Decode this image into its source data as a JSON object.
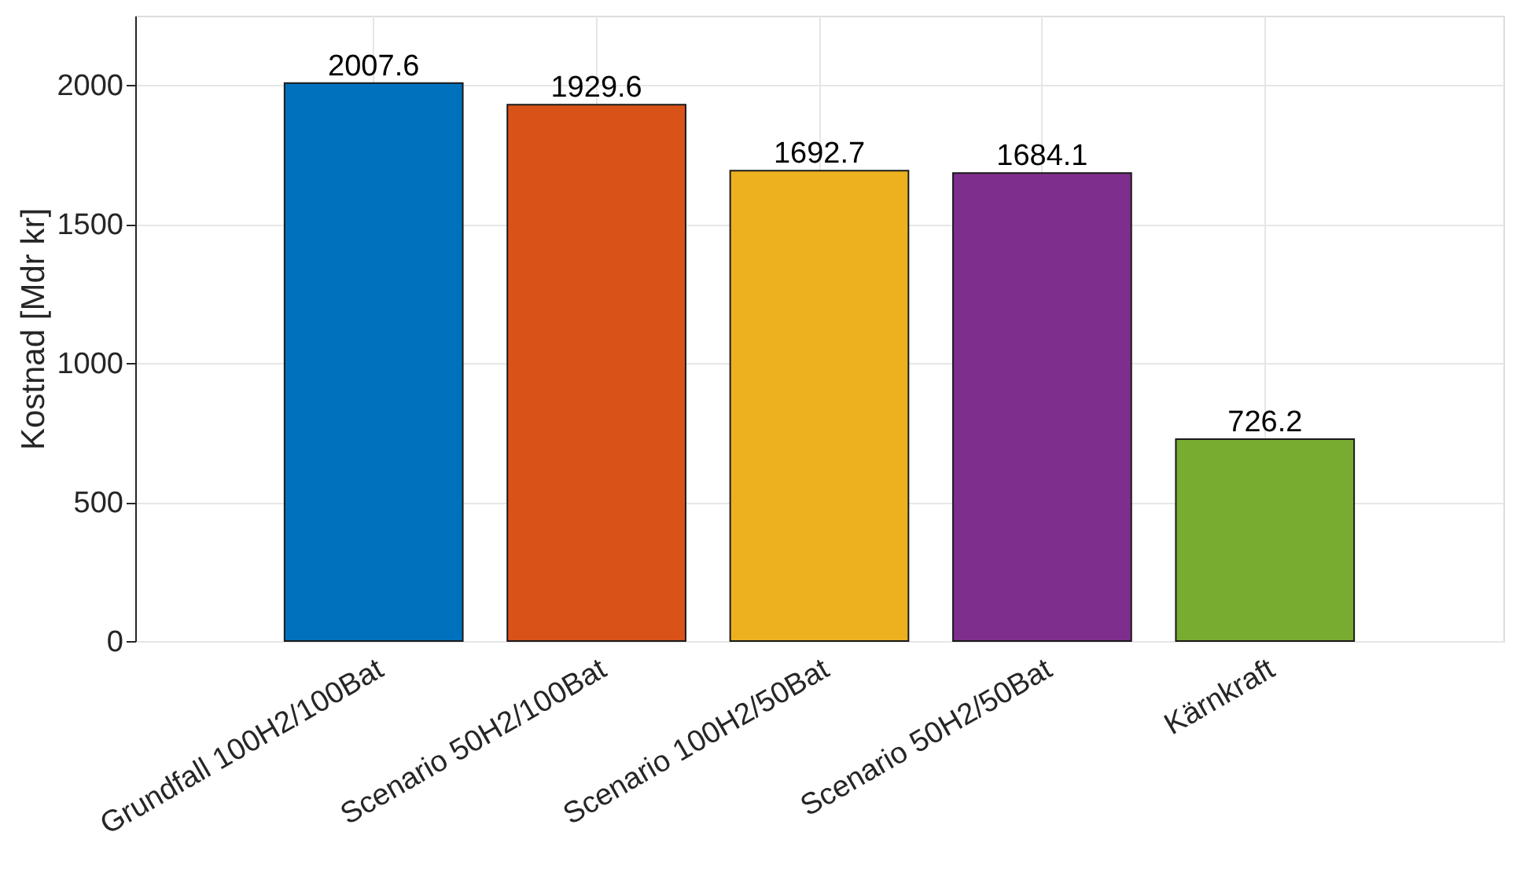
{
  "chart_data": {
    "type": "bar",
    "ylabel": "Kostnad [Mdr kr]",
    "categories": [
      "Grundfall 100H2/100Bat",
      "Scenario 50H2/100Bat",
      "Scenario 100H2/50Bat",
      "Scenario 50H2/50Bat",
      "Kärnkraft"
    ],
    "values": [
      2007.6,
      1929.6,
      1692.7,
      1684.1,
      726.2
    ],
    "colors": [
      "#0072bd",
      "#d95319",
      "#edb120",
      "#7e2f8e",
      "#77ac30"
    ],
    "ylim": [
      0,
      2250
    ],
    "yticks": [
      0,
      500,
      1000,
      1500,
      2000
    ],
    "grid": true,
    "data_labels": true
  }
}
